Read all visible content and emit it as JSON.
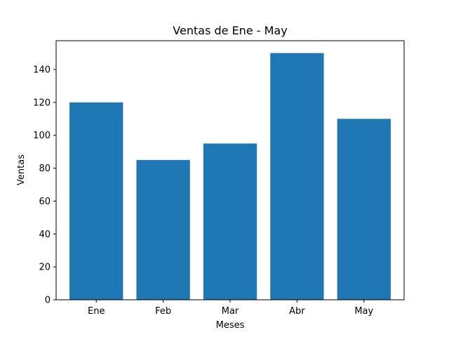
{
  "chart_data": {
    "type": "bar",
    "title": "Ventas de Ene - May",
    "xlabel": "Meses",
    "ylabel": "Ventas",
    "categories": [
      "Ene",
      "Feb",
      "Mar",
      "Abr",
      "May"
    ],
    "values": [
      120,
      85,
      95,
      150,
      110
    ],
    "ylim": [
      0,
      157.5
    ],
    "yticks": [
      0,
      20,
      40,
      60,
      80,
      100,
      120,
      140
    ],
    "grid": false,
    "bar_color": "#1f77b4"
  }
}
